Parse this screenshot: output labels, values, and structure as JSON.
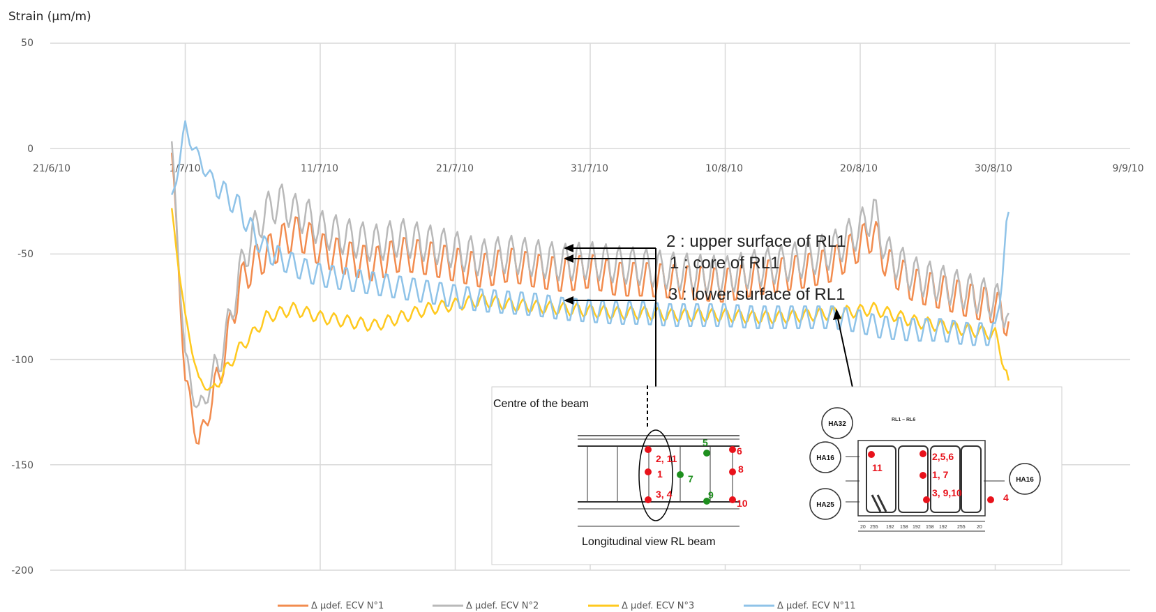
{
  "chart_data": {
    "type": "line",
    "ylabel": "Strain (µm/m)",
    "ylim": [
      -200,
      50
    ],
    "yticks": [
      "50",
      "0",
      "-50",
      "-100",
      "-150",
      "-200"
    ],
    "xlim": [
      "2010-06-21",
      "2010-09-09"
    ],
    "xtick_labels": [
      "21/6/10",
      "1/7/10",
      "11/7/10",
      "21/7/10",
      "31/7/10",
      "10/8/10",
      "20/8/10",
      "30/8/10",
      "9/9/10"
    ],
    "grid": true,
    "legend_position": "bottom",
    "series": [
      {
        "name": "Δ µdef. ECV N°1",
        "color": "#f28c4f",
        "x": [
          "2010-06-30",
          "2010-07-01",
          "2010-07-02",
          "2010-07-03",
          "2010-07-04",
          "2010-07-05",
          "2010-07-06",
          "2010-07-07",
          "2010-07-08",
          "2010-07-09",
          "2010-07-10",
          "2010-07-11",
          "2010-07-13",
          "2010-07-15",
          "2010-07-17",
          "2010-07-19",
          "2010-07-21",
          "2010-07-23",
          "2010-07-25",
          "2010-07-27",
          "2010-07-29",
          "2010-07-31",
          "2010-08-02",
          "2010-08-04",
          "2010-08-06",
          "2010-08-08",
          "2010-08-10",
          "2010-08-12",
          "2010-08-14",
          "2010-08-16",
          "2010-08-18",
          "2010-08-20",
          "2010-08-21",
          "2010-08-22",
          "2010-08-24",
          "2010-08-26",
          "2010-08-28",
          "2010-08-30",
          "2010-08-31"
        ],
        "values": [
          -2,
          -110,
          -140,
          -120,
          -95,
          -65,
          -55,
          -50,
          -45,
          -40,
          -42,
          -48,
          -52,
          -55,
          -50,
          -52,
          -55,
          -58,
          -55,
          -58,
          -60,
          -58,
          -62,
          -62,
          -63,
          -64,
          -65,
          -62,
          -60,
          -58,
          -55,
          -45,
          -40,
          -55,
          -65,
          -68,
          -72,
          -75,
          -82
        ]
      },
      {
        "name": "Δ µdef. ECV N°2",
        "color": "#b9b9b9",
        "x": [
          "2010-06-30",
          "2010-07-01",
          "2010-07-02",
          "2010-07-03",
          "2010-07-04",
          "2010-07-05",
          "2010-07-06",
          "2010-07-07",
          "2010-07-08",
          "2010-07-09",
          "2010-07-10",
          "2010-07-11",
          "2010-07-13",
          "2010-07-15",
          "2010-07-17",
          "2010-07-19",
          "2010-07-21",
          "2010-07-23",
          "2010-07-25",
          "2010-07-27",
          "2010-07-29",
          "2010-07-31",
          "2010-08-02",
          "2010-08-04",
          "2010-08-06",
          "2010-08-08",
          "2010-08-10",
          "2010-08-12",
          "2010-08-14",
          "2010-08-16",
          "2010-08-18",
          "2010-08-20",
          "2010-08-21",
          "2010-08-22",
          "2010-08-24",
          "2010-08-26",
          "2010-08-28",
          "2010-08-30",
          "2010-08-31"
        ],
        "values": [
          0,
          -100,
          -125,
          -110,
          -90,
          -60,
          -40,
          -30,
          -25,
          -30,
          -32,
          -38,
          -42,
          -45,
          -42,
          -45,
          -48,
          -52,
          -50,
          -52,
          -54,
          -53,
          -55,
          -56,
          -58,
          -59,
          -60,
          -57,
          -55,
          -52,
          -48,
          -38,
          -30,
          -50,
          -60,
          -64,
          -68,
          -72,
          -78
        ]
      },
      {
        "name": "Δ µdef. ECV N°3",
        "color": "#ffc91e",
        "x": [
          "2010-06-30",
          "2010-07-01",
          "2010-07-02",
          "2010-07-03",
          "2010-07-04",
          "2010-07-05",
          "2010-07-06",
          "2010-07-07",
          "2010-07-08",
          "2010-07-09",
          "2010-07-10",
          "2010-07-11",
          "2010-07-13",
          "2010-07-15",
          "2010-07-17",
          "2010-07-19",
          "2010-07-21",
          "2010-07-23",
          "2010-07-25",
          "2010-07-27",
          "2010-07-29",
          "2010-07-31",
          "2010-08-02",
          "2010-08-04",
          "2010-08-06",
          "2010-08-08",
          "2010-08-10",
          "2010-08-12",
          "2010-08-14",
          "2010-08-16",
          "2010-08-18",
          "2010-08-20",
          "2010-08-21",
          "2010-08-22",
          "2010-08-24",
          "2010-08-26",
          "2010-08-28",
          "2010-08-30",
          "2010-08-31"
        ],
        "values": [
          -30,
          -80,
          -110,
          -115,
          -105,
          -95,
          -88,
          -80,
          -78,
          -76,
          -78,
          -80,
          -82,
          -84,
          -80,
          -76,
          -74,
          -72,
          -74,
          -75,
          -76,
          -77,
          -78,
          -78,
          -79,
          -79,
          -79,
          -80,
          -80,
          -79,
          -78,
          -77,
          -76,
          -78,
          -82,
          -84,
          -86,
          -88,
          -110
        ]
      },
      {
        "name": "Δ µdef. ECV N°11",
        "color": "#8fc3e8",
        "x": [
          "2010-06-30",
          "2010-07-01",
          "2010-07-02",
          "2010-07-03",
          "2010-07-04",
          "2010-07-05",
          "2010-07-06",
          "2010-07-07",
          "2010-07-08",
          "2010-07-09",
          "2010-07-10",
          "2010-07-11",
          "2010-07-13",
          "2010-07-15",
          "2010-07-17",
          "2010-07-19",
          "2010-07-21",
          "2010-07-23",
          "2010-07-25",
          "2010-07-27",
          "2010-07-29",
          "2010-07-31",
          "2010-08-02",
          "2010-08-04",
          "2010-08-06",
          "2010-08-08",
          "2010-08-10",
          "2010-08-12",
          "2010-08-14",
          "2010-08-16",
          "2010-08-18",
          "2010-08-20",
          "2010-08-21",
          "2010-08-22",
          "2010-08-24",
          "2010-08-26",
          "2010-08-28",
          "2010-08-30",
          "2010-08-31"
        ],
        "values": [
          -25,
          10,
          -5,
          -15,
          -22,
          -28,
          -40,
          -48,
          -52,
          -55,
          -58,
          -60,
          -62,
          -64,
          -66,
          -68,
          -70,
          -72,
          -73,
          -74,
          -76,
          -77,
          -78,
          -78,
          -79,
          -79,
          -79,
          -80,
          -80,
          -80,
          -80,
          -82,
          -84,
          -85,
          -86,
          -86,
          -88,
          -88,
          -30
        ]
      }
    ],
    "annotations": [
      "2 : upper surface of RL1",
      "1 : core of RL1",
      "3 : lower surface of RL1"
    ]
  },
  "inset": {
    "centre_label": "Centre of the beam",
    "longitudinal_caption": "Longitudinal view RL beam",
    "section_title": "RL1 – RL6",
    "rebar_labels": [
      "HA32",
      "HA16",
      "HA25",
      "HA16"
    ],
    "dimension_labels": [
      "20",
      "255",
      "192",
      "158",
      "192",
      "158",
      "192",
      "255",
      "20"
    ],
    "long_points_red": [
      "2, 11",
      "1",
      "3, 4",
      "6",
      "8",
      "10"
    ],
    "long_points_green": [
      "5",
      "7",
      "9"
    ],
    "section_points": [
      "11",
      "2,5,6",
      "1, 7",
      "3, 9,10",
      "4"
    ],
    "colors": {
      "red": "#e8121b",
      "green": "#1e8f1e"
    }
  }
}
